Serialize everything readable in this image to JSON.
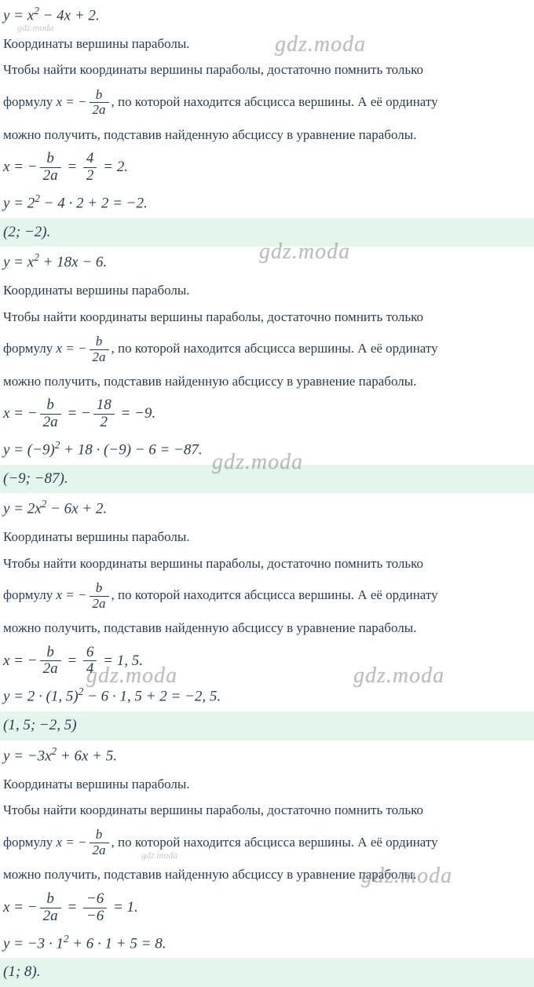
{
  "watermark": "gdz.moda",
  "colors": {
    "text": "#2a3d52",
    "answerBg": "#e4f5ed",
    "watermark": "#888888"
  },
  "problems": [
    {
      "eq_pre": "y = x",
      "eq_sup": "2",
      "eq_post": " − 4x + 2.",
      "heading": "Координаты вершины параболы.",
      "desc1": "Чтобы найти координаты вершины параболы, достаточно помнить только",
      "desc2_pre": "формулу ",
      "desc2_post": ", по которой находится абсцисса вершины. А её ординату",
      "desc3": "можно получить, подставив найденную абсциссу в уравнение параболы.",
      "x_num1": "b",
      "x_den1": "2a",
      "x_num2": "4",
      "x_den2": "2",
      "x_res": " = 2.",
      "y_line_pre": "y = 2",
      "y_sup": "2",
      "y_post": " − 4 · 2 + 2 = −2.",
      "answer": "(2; −2)."
    },
    {
      "eq_pre": "y = x",
      "eq_sup": "2",
      "eq_post": " + 18x − 6.",
      "heading": "Координаты вершины параболы.",
      "desc1": "Чтобы найти координаты вершины параболы, достаточно помнить только",
      "desc2_pre": "формулу ",
      "desc2_post": ", по которой находится абсцисса вершины. А её ординату",
      "desc3": "можно получить, подставив найденную абсциссу в уравнение параболы.",
      "x_num1": "b",
      "x_den1": "2a",
      "x_num2": "18",
      "x_den2": "2",
      "x_res": " = −9.",
      "x_neg2": true,
      "y_line_pre": "y = (−9)",
      "y_sup": "2",
      "y_post": " + 18 · (−9) − 6 = −87.",
      "answer": "(−9; −87)."
    },
    {
      "eq_pre": "y = 2x",
      "eq_sup": "2",
      "eq_post": " − 6x + 2.",
      "heading": "Координаты вершины параболы.",
      "desc1": "Чтобы найти координаты вершины параболы, достаточно помнить только",
      "desc2_pre": "формулу ",
      "desc2_post": ", по которой находится абсцисса вершины. А её ординату",
      "desc3": "можно получить, подставив найденную абсциссу в уравнение параболы.",
      "x_num1": "b",
      "x_den1": "2a",
      "x_num2": "6",
      "x_den2": "4",
      "x_res": " = 1, 5.",
      "y_line_pre": "y = 2 · (1, 5)",
      "y_sup": "2",
      "y_post": " − 6 · 1, 5 + 2 = −2, 5.",
      "answer": "(1, 5; −2, 5)"
    },
    {
      "eq_pre": "y = −3x",
      "eq_sup": "2",
      "eq_post": " + 6x + 5.",
      "heading": "Координаты вершины параболы.",
      "desc1": "Чтобы найти координаты вершины параболы, достаточно помнить только",
      "desc2_pre": "формулу ",
      "desc2_post": ", по которой находится абсцисса вершины. А её ординату",
      "desc3": "можно получить, подставив найденную абсциссу в уравнение параболы.",
      "x_num1": "b",
      "x_den1": "2a",
      "x_num2": "−6",
      "x_den2": "−6",
      "x_res": " = 1.",
      "y_line_pre": "y = −3 · 1",
      "y_sup": "2",
      "y_post": " + 6 · 1 + 5 = 8.",
      "answer": "(1; 8)."
    }
  ],
  "formula": {
    "num": "b",
    "den": "2a",
    "prefix": "x = −"
  }
}
